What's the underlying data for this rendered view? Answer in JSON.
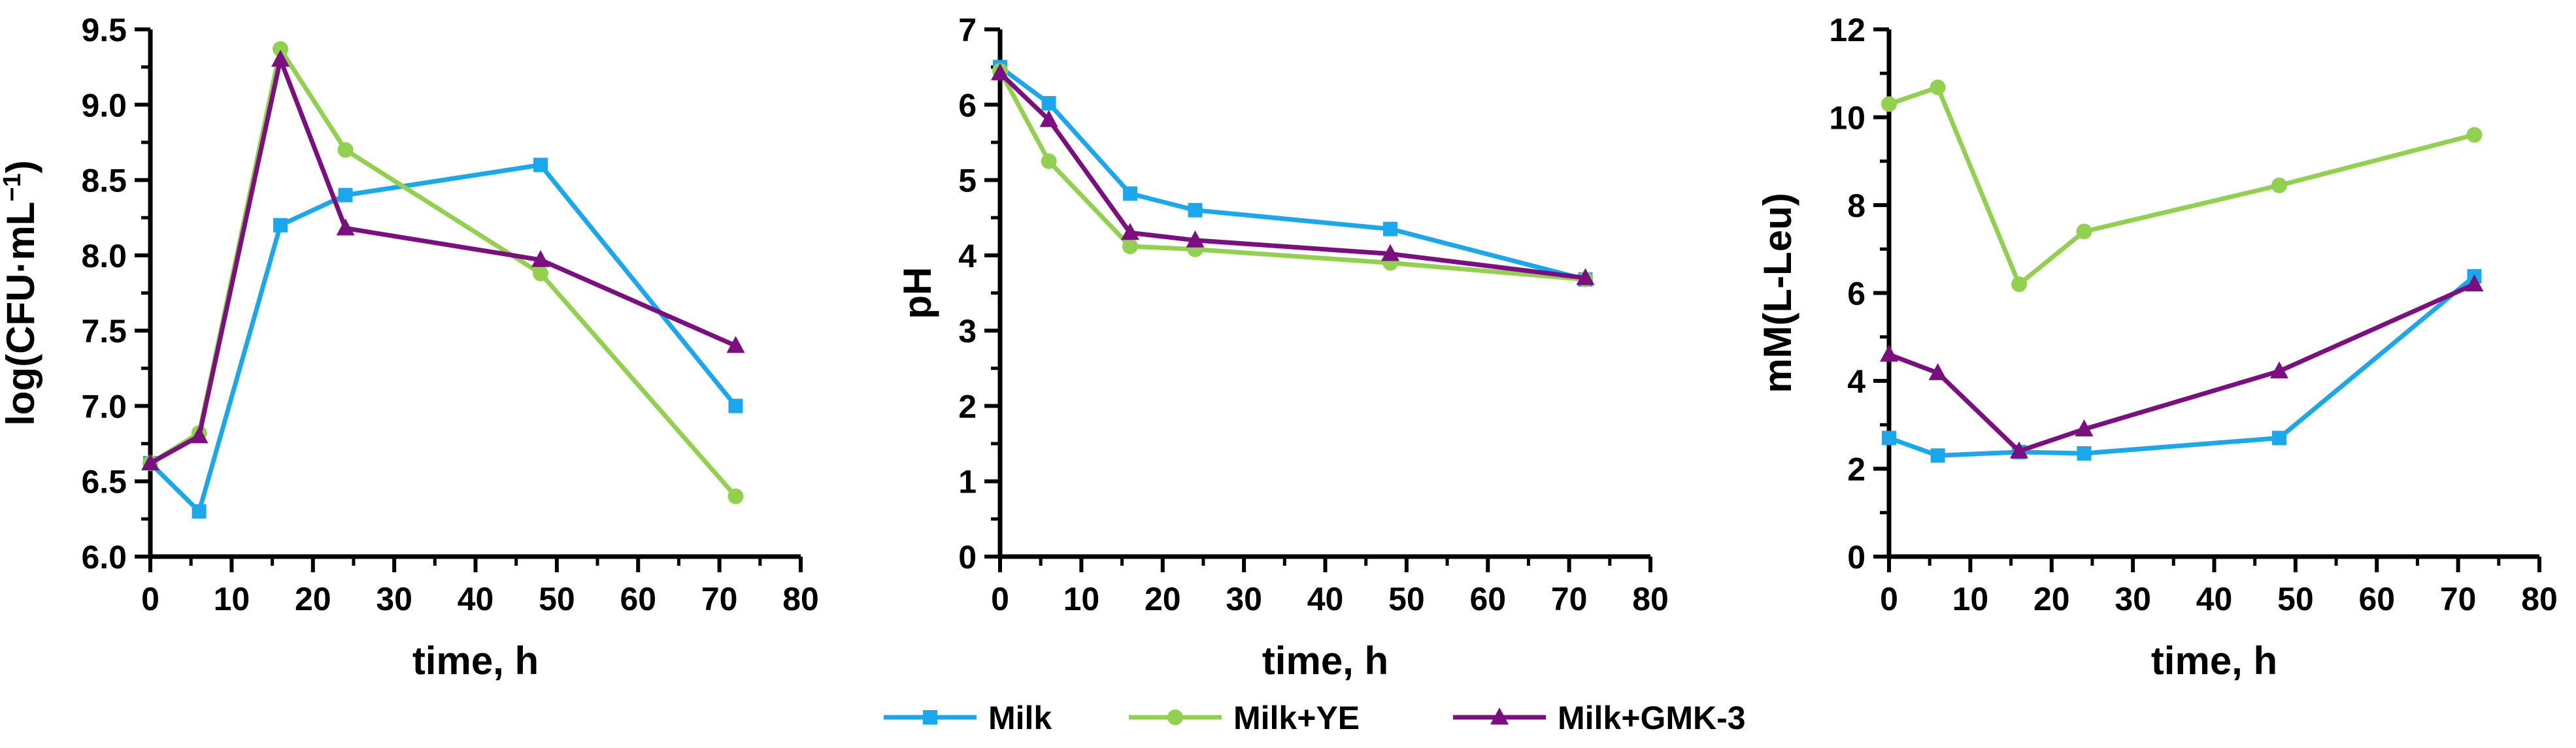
{
  "chart_data": [
    {
      "type": "line",
      "title": "",
      "xlabel": "time, h",
      "ylabel": "log(CFU·mL",
      "ylabel_sup": "−1",
      "ylabel_close": ")",
      "xlim": [
        0,
        80
      ],
      "ylim": [
        6.0,
        9.5
      ],
      "xticks": [
        0,
        10,
        20,
        30,
        40,
        50,
        60,
        70,
        80
      ],
      "yticks": [
        6.0,
        6.5,
        7.0,
        7.5,
        8.0,
        8.5,
        9.0,
        9.5
      ],
      "ytick_decimals": 1,
      "grid": false,
      "series": [
        {
          "name": "Milk",
          "x": [
            0,
            6,
            16,
            24,
            48,
            72
          ],
          "values": [
            6.62,
            6.3,
            8.2,
            8.4,
            8.6,
            7.0
          ]
        },
        {
          "name": "Milk+YE",
          "x": [
            0,
            6,
            16,
            24,
            48,
            72
          ],
          "values": [
            6.62,
            6.82,
            9.37,
            8.7,
            7.88,
            6.4
          ]
        },
        {
          "name": "Milk+GMK-3",
          "x": [
            0,
            6,
            16,
            24,
            48,
            72
          ],
          "values": [
            6.62,
            6.8,
            9.3,
            8.18,
            7.97,
            7.4
          ]
        }
      ]
    },
    {
      "type": "line",
      "title": "",
      "xlabel": "time, h",
      "ylabel": "pH",
      "xlim": [
        0,
        80
      ],
      "ylim": [
        0,
        7
      ],
      "xticks": [
        0,
        10,
        20,
        30,
        40,
        50,
        60,
        70,
        80
      ],
      "yticks": [
        0,
        1,
        2,
        3,
        4,
        5,
        6,
        7
      ],
      "ytick_decimals": 0,
      "grid": false,
      "series": [
        {
          "name": "Milk",
          "x": [
            0,
            6,
            16,
            24,
            48,
            72
          ],
          "values": [
            6.5,
            6.02,
            4.82,
            4.6,
            4.35,
            3.68
          ]
        },
        {
          "name": "Milk+YE",
          "x": [
            0,
            6,
            16,
            24,
            48,
            72
          ],
          "values": [
            6.45,
            5.25,
            4.12,
            4.08,
            3.9,
            3.68
          ]
        },
        {
          "name": "Milk+GMK-3",
          "x": [
            0,
            6,
            16,
            24,
            48,
            72
          ],
          "values": [
            6.42,
            5.8,
            4.3,
            4.2,
            4.02,
            3.7
          ]
        }
      ]
    },
    {
      "type": "line",
      "title": "",
      "xlabel": "time, h",
      "ylabel": "mM(L-Leu)",
      "xlim": [
        0,
        80
      ],
      "ylim": [
        0,
        12
      ],
      "xticks": [
        0,
        10,
        20,
        30,
        40,
        50,
        60,
        70,
        80
      ],
      "yticks": [
        0,
        2,
        4,
        6,
        8,
        10,
        12
      ],
      "ytick_decimals": 0,
      "grid": false,
      "series": [
        {
          "name": "Milk",
          "x": [
            0,
            6,
            16,
            24,
            48,
            72
          ],
          "values": [
            2.7,
            2.3,
            2.38,
            2.35,
            2.7,
            6.38
          ]
        },
        {
          "name": "Milk+YE",
          "x": [
            0,
            6,
            16,
            24,
            48,
            72
          ],
          "values": [
            10.3,
            10.68,
            6.2,
            7.4,
            8.45,
            9.6
          ]
        },
        {
          "name": "Milk+GMK-3",
          "x": [
            0,
            6,
            16,
            24,
            48,
            72
          ],
          "values": [
            4.6,
            4.18,
            2.4,
            2.9,
            4.22,
            6.2
          ]
        }
      ]
    }
  ],
  "legend": {
    "placement": "bottom-center",
    "items": [
      {
        "name": "Milk",
        "color": "#1aa7ec",
        "marker": "square"
      },
      {
        "name": "Milk+YE",
        "color": "#92d050",
        "marker": "circle"
      },
      {
        "name": "Milk+GMK-3",
        "color": "#7b0f80",
        "marker": "triangle"
      }
    ]
  }
}
